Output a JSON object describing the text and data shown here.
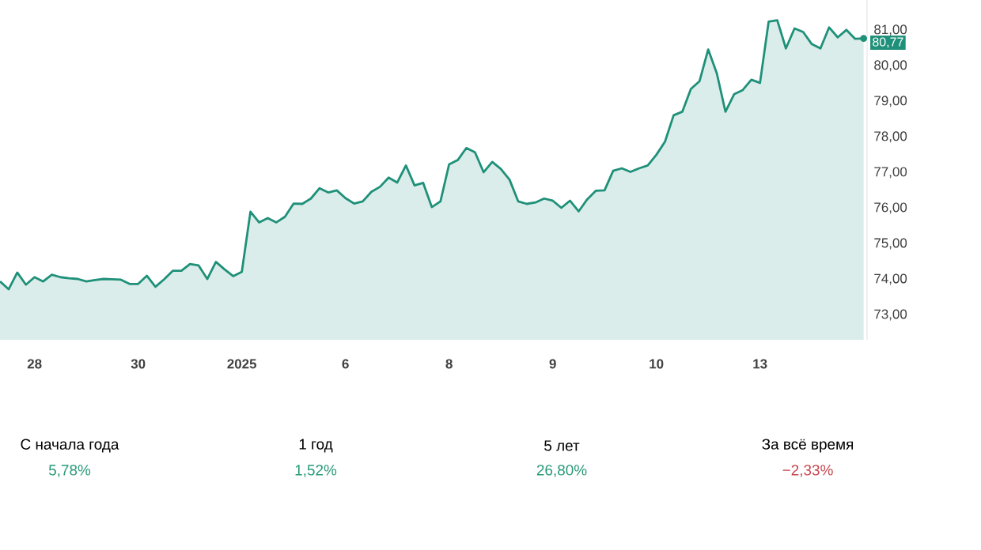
{
  "chart_data": [
    {
      "type": "area",
      "categories": [
        null,
        null,
        null,
        null,
        "28",
        null,
        null,
        null,
        null,
        null,
        null,
        null,
        null,
        null,
        null,
        null,
        "30",
        null,
        null,
        null,
        null,
        null,
        null,
        null,
        null,
        null,
        null,
        null,
        "2025",
        null,
        null,
        null,
        null,
        null,
        null,
        null,
        null,
        null,
        null,
        null,
        "6",
        null,
        null,
        null,
        null,
        null,
        null,
        null,
        null,
        null,
        null,
        null,
        "8",
        null,
        null,
        null,
        null,
        null,
        null,
        null,
        null,
        null,
        null,
        null,
        "9",
        null,
        null,
        null,
        null,
        null,
        null,
        null,
        null,
        null,
        null,
        null,
        "10",
        null,
        null,
        null,
        null,
        null,
        null,
        null,
        null,
        null,
        null,
        null,
        "13",
        null,
        null,
        null,
        null,
        null,
        null,
        null,
        null,
        null,
        null,
        null,
        null
      ],
      "series": [
        {
          "color": "#1f9079",
          "values": [
            73.94,
            73.72,
            74.19,
            73.85,
            74.06,
            73.94,
            74.13,
            74.06,
            74.03,
            74.01,
            73.94,
            73.98,
            74.01,
            74.0,
            73.99,
            73.87,
            73.87,
            74.1,
            73.79,
            74.0,
            74.24,
            74.24,
            74.43,
            74.39,
            74.01,
            74.49,
            74.28,
            74.09,
            74.21,
            75.9,
            75.6,
            75.72,
            75.6,
            75.76,
            76.13,
            76.12,
            76.27,
            76.56,
            76.44,
            76.5,
            76.28,
            76.13,
            76.19,
            76.46,
            76.6,
            76.86,
            76.72,
            77.2,
            76.64,
            76.71,
            76.03,
            76.19,
            77.23,
            77.35,
            77.69,
            77.57,
            77.01,
            77.3,
            77.1,
            76.8,
            76.19,
            76.12,
            76.16,
            76.27,
            76.21,
            76.01,
            76.21,
            75.91,
            76.25,
            76.49,
            76.5,
            77.05,
            77.12,
            77.02,
            77.12,
            77.2,
            77.5,
            77.87,
            78.61,
            78.71,
            79.35,
            79.57,
            80.46,
            79.79,
            78.71,
            79.2,
            79.32,
            79.61,
            79.52,
            81.24,
            81.28,
            80.49,
            81.05,
            80.95,
            80.61,
            80.49,
            81.08,
            80.8,
            81.01,
            80.76,
            80.77
          ]
        }
      ],
      "ylim": [
        72.3,
        81.85
      ],
      "yticks": [
        {
          "value": 73,
          "label": "73,00"
        },
        {
          "value": 74,
          "label": "74,00"
        },
        {
          "value": 75,
          "label": "75,00"
        },
        {
          "value": 76,
          "label": "76,00"
        },
        {
          "value": 77,
          "label": "77,00"
        },
        {
          "value": 78,
          "label": "78,00"
        },
        {
          "value": 79,
          "label": "79,00"
        },
        {
          "value": 80,
          "label": "80,00"
        },
        {
          "value": 81,
          "label": "81,00"
        }
      ],
      "annotations": [
        "80,77"
      ],
      "grid": false,
      "marker": "none"
    },
    {
      "type": "other",
      "categories": [
        "С начала года",
        "1 год",
        "5 лет",
        "За всё время"
      ],
      "value_labels": [
        "5,78%",
        "1,52%",
        "26,80%",
        "−2,33%"
      ],
      "colors": [
        "#2a9a79",
        "#2a9a79",
        "#2a9a79",
        "#c7464f"
      ]
    }
  ]
}
